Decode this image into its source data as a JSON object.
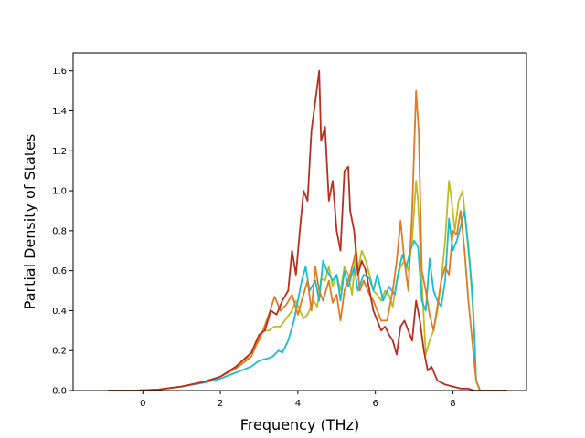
{
  "chart_data": {
    "type": "line",
    "title": "",
    "xlabel": "Frequency (THz)",
    "ylabel": "Partial Density of States",
    "xlim": [
      -1.8,
      9.9
    ],
    "ylim": [
      0.0,
      1.69
    ],
    "xticks": [
      0,
      2,
      4,
      6,
      8
    ],
    "yticks": [
      0.0,
      0.2,
      0.4,
      0.6,
      0.8,
      1.0,
      1.2,
      1.4,
      1.6
    ],
    "ytick_labels": [
      "0.0",
      "0.2",
      "0.4",
      "0.6",
      "0.8",
      "1.0",
      "1.2",
      "1.4",
      "1.6"
    ],
    "grid": false,
    "legend": "none",
    "series": [
      {
        "color": "#bcbd22",
        "x": [
          -0.9,
          -0.2,
          0.4,
          1.0,
          1.6,
          2.0,
          2.3,
          2.6,
          2.8,
          3.0,
          3.1,
          3.25,
          3.4,
          3.55,
          3.7,
          3.85,
          3.95,
          4.05,
          4.15,
          4.25,
          4.4,
          4.5,
          4.6,
          4.7,
          4.8,
          4.9,
          5.0,
          5.1,
          5.2,
          5.3,
          5.4,
          5.5,
          5.55,
          5.65,
          5.75,
          5.85,
          5.95,
          6.05,
          6.15,
          6.25,
          6.35,
          6.45,
          6.55,
          6.65,
          6.75,
          6.85,
          6.95,
          7.05,
          7.1,
          7.2,
          7.3,
          7.4,
          7.5,
          7.6,
          7.7,
          7.8,
          7.9,
          7.95,
          8.05,
          8.15,
          8.25,
          8.35,
          8.45,
          8.55,
          8.6,
          8.7,
          9.0,
          9.4
        ],
        "y": [
          0.0,
          0.0,
          0.005,
          0.02,
          0.045,
          0.07,
          0.1,
          0.14,
          0.19,
          0.25,
          0.3,
          0.3,
          0.32,
          0.32,
          0.36,
          0.4,
          0.45,
          0.4,
          0.36,
          0.38,
          0.45,
          0.42,
          0.56,
          0.55,
          0.62,
          0.52,
          0.58,
          0.5,
          0.62,
          0.58,
          0.48,
          0.72,
          0.6,
          0.7,
          0.65,
          0.58,
          0.5,
          0.48,
          0.45,
          0.5,
          0.48,
          0.42,
          0.55,
          0.62,
          0.65,
          0.6,
          0.75,
          1.05,
          0.95,
          0.55,
          0.18,
          0.25,
          0.3,
          0.4,
          0.55,
          0.75,
          1.05,
          0.98,
          0.8,
          0.95,
          1.0,
          0.8,
          0.6,
          0.3,
          0.05,
          0.0,
          0.0,
          0.0
        ]
      },
      {
        "color": "#17becf",
        "x": [
          -0.9,
          -0.2,
          0.4,
          1.0,
          1.6,
          2.0,
          2.4,
          2.8,
          3.0,
          3.2,
          3.35,
          3.5,
          3.6,
          3.75,
          3.9,
          4.0,
          4.1,
          4.2,
          4.3,
          4.45,
          4.55,
          4.65,
          4.75,
          4.9,
          5.0,
          5.1,
          5.2,
          5.3,
          5.45,
          5.55,
          5.7,
          5.85,
          5.95,
          6.05,
          6.2,
          6.35,
          6.5,
          6.6,
          6.7,
          6.8,
          6.9,
          7.0,
          7.1,
          7.2,
          7.3,
          7.4,
          7.5,
          7.6,
          7.7,
          7.8,
          7.9,
          8.0,
          8.1,
          8.2,
          8.3,
          8.4,
          8.5,
          8.55,
          8.6,
          8.7,
          9.0,
          9.4
        ],
        "y": [
          0.0,
          0.0,
          0.005,
          0.02,
          0.04,
          0.06,
          0.09,
          0.12,
          0.15,
          0.16,
          0.17,
          0.2,
          0.19,
          0.25,
          0.35,
          0.45,
          0.55,
          0.62,
          0.5,
          0.55,
          0.45,
          0.65,
          0.6,
          0.55,
          0.58,
          0.45,
          0.6,
          0.52,
          0.62,
          0.5,
          0.58,
          0.56,
          0.5,
          0.58,
          0.45,
          0.52,
          0.48,
          0.6,
          0.68,
          0.62,
          0.7,
          0.75,
          0.72,
          0.45,
          0.4,
          0.66,
          0.5,
          0.45,
          0.42,
          0.55,
          0.86,
          0.7,
          0.75,
          0.82,
          0.9,
          0.72,
          0.5,
          0.3,
          0.05,
          0.0,
          0.0,
          0.0
        ]
      },
      {
        "color": "#e07b24",
        "x": [
          -0.9,
          -0.2,
          0.4,
          1.0,
          1.6,
          2.0,
          2.4,
          2.8,
          2.95,
          3.1,
          3.25,
          3.4,
          3.55,
          3.7,
          3.85,
          4.0,
          4.1,
          4.25,
          4.35,
          4.45,
          4.55,
          4.65,
          4.8,
          4.9,
          5.0,
          5.1,
          5.2,
          5.35,
          5.5,
          5.6,
          5.7,
          5.85,
          5.95,
          6.05,
          6.15,
          6.3,
          6.45,
          6.55,
          6.65,
          6.75,
          6.85,
          6.95,
          7.05,
          7.12,
          7.2,
          7.3,
          7.4,
          7.5,
          7.6,
          7.7,
          7.8,
          7.9,
          8.0,
          8.1,
          8.2,
          8.3,
          8.4,
          8.5,
          8.6,
          8.7,
          9.0,
          9.4
        ],
        "y": [
          0.0,
          0.0,
          0.005,
          0.02,
          0.045,
          0.07,
          0.11,
          0.17,
          0.24,
          0.3,
          0.38,
          0.47,
          0.4,
          0.43,
          0.48,
          0.38,
          0.45,
          0.55,
          0.4,
          0.62,
          0.5,
          0.45,
          0.55,
          0.44,
          0.48,
          0.35,
          0.5,
          0.58,
          0.7,
          0.5,
          0.55,
          0.48,
          0.45,
          0.4,
          0.35,
          0.35,
          0.5,
          0.65,
          0.85,
          0.65,
          0.5,
          0.9,
          1.5,
          1.3,
          0.6,
          0.5,
          0.38,
          0.3,
          0.42,
          0.55,
          0.62,
          0.58,
          0.8,
          0.78,
          0.9,
          0.7,
          0.45,
          0.25,
          0.05,
          0.0,
          0.0,
          0.0
        ]
      },
      {
        "color": "#b82e1f",
        "x": [
          -0.9,
          -0.2,
          0.4,
          1.0,
          1.6,
          2.0,
          2.4,
          2.8,
          3.0,
          3.15,
          3.3,
          3.45,
          3.6,
          3.75,
          3.85,
          3.95,
          4.05,
          4.15,
          4.25,
          4.35,
          4.45,
          4.55,
          4.6,
          4.7,
          4.8,
          4.9,
          5.0,
          5.1,
          5.2,
          5.3,
          5.35,
          5.45,
          5.55,
          5.65,
          5.75,
          5.85,
          5.95,
          6.05,
          6.15,
          6.25,
          6.35,
          6.45,
          6.55,
          6.65,
          6.75,
          6.85,
          6.95,
          7.05,
          7.15,
          7.25,
          7.35,
          7.45,
          7.6,
          7.8,
          8.0,
          8.2,
          8.4,
          8.55,
          8.7,
          9.0,
          9.4
        ],
        "y": [
          0.0,
          0.0,
          0.005,
          0.02,
          0.045,
          0.07,
          0.12,
          0.19,
          0.28,
          0.3,
          0.4,
          0.38,
          0.45,
          0.5,
          0.7,
          0.58,
          0.8,
          1.0,
          0.95,
          1.3,
          1.45,
          1.6,
          1.25,
          1.32,
          0.95,
          1.05,
          0.8,
          0.7,
          1.1,
          1.12,
          0.9,
          0.8,
          0.58,
          0.65,
          0.6,
          0.5,
          0.4,
          0.35,
          0.3,
          0.32,
          0.28,
          0.25,
          0.18,
          0.32,
          0.35,
          0.3,
          0.25,
          0.45,
          0.35,
          0.2,
          0.1,
          0.12,
          0.05,
          0.03,
          0.02,
          0.01,
          0.01,
          0.0,
          0.0,
          0.0,
          0.0
        ]
      }
    ]
  }
}
